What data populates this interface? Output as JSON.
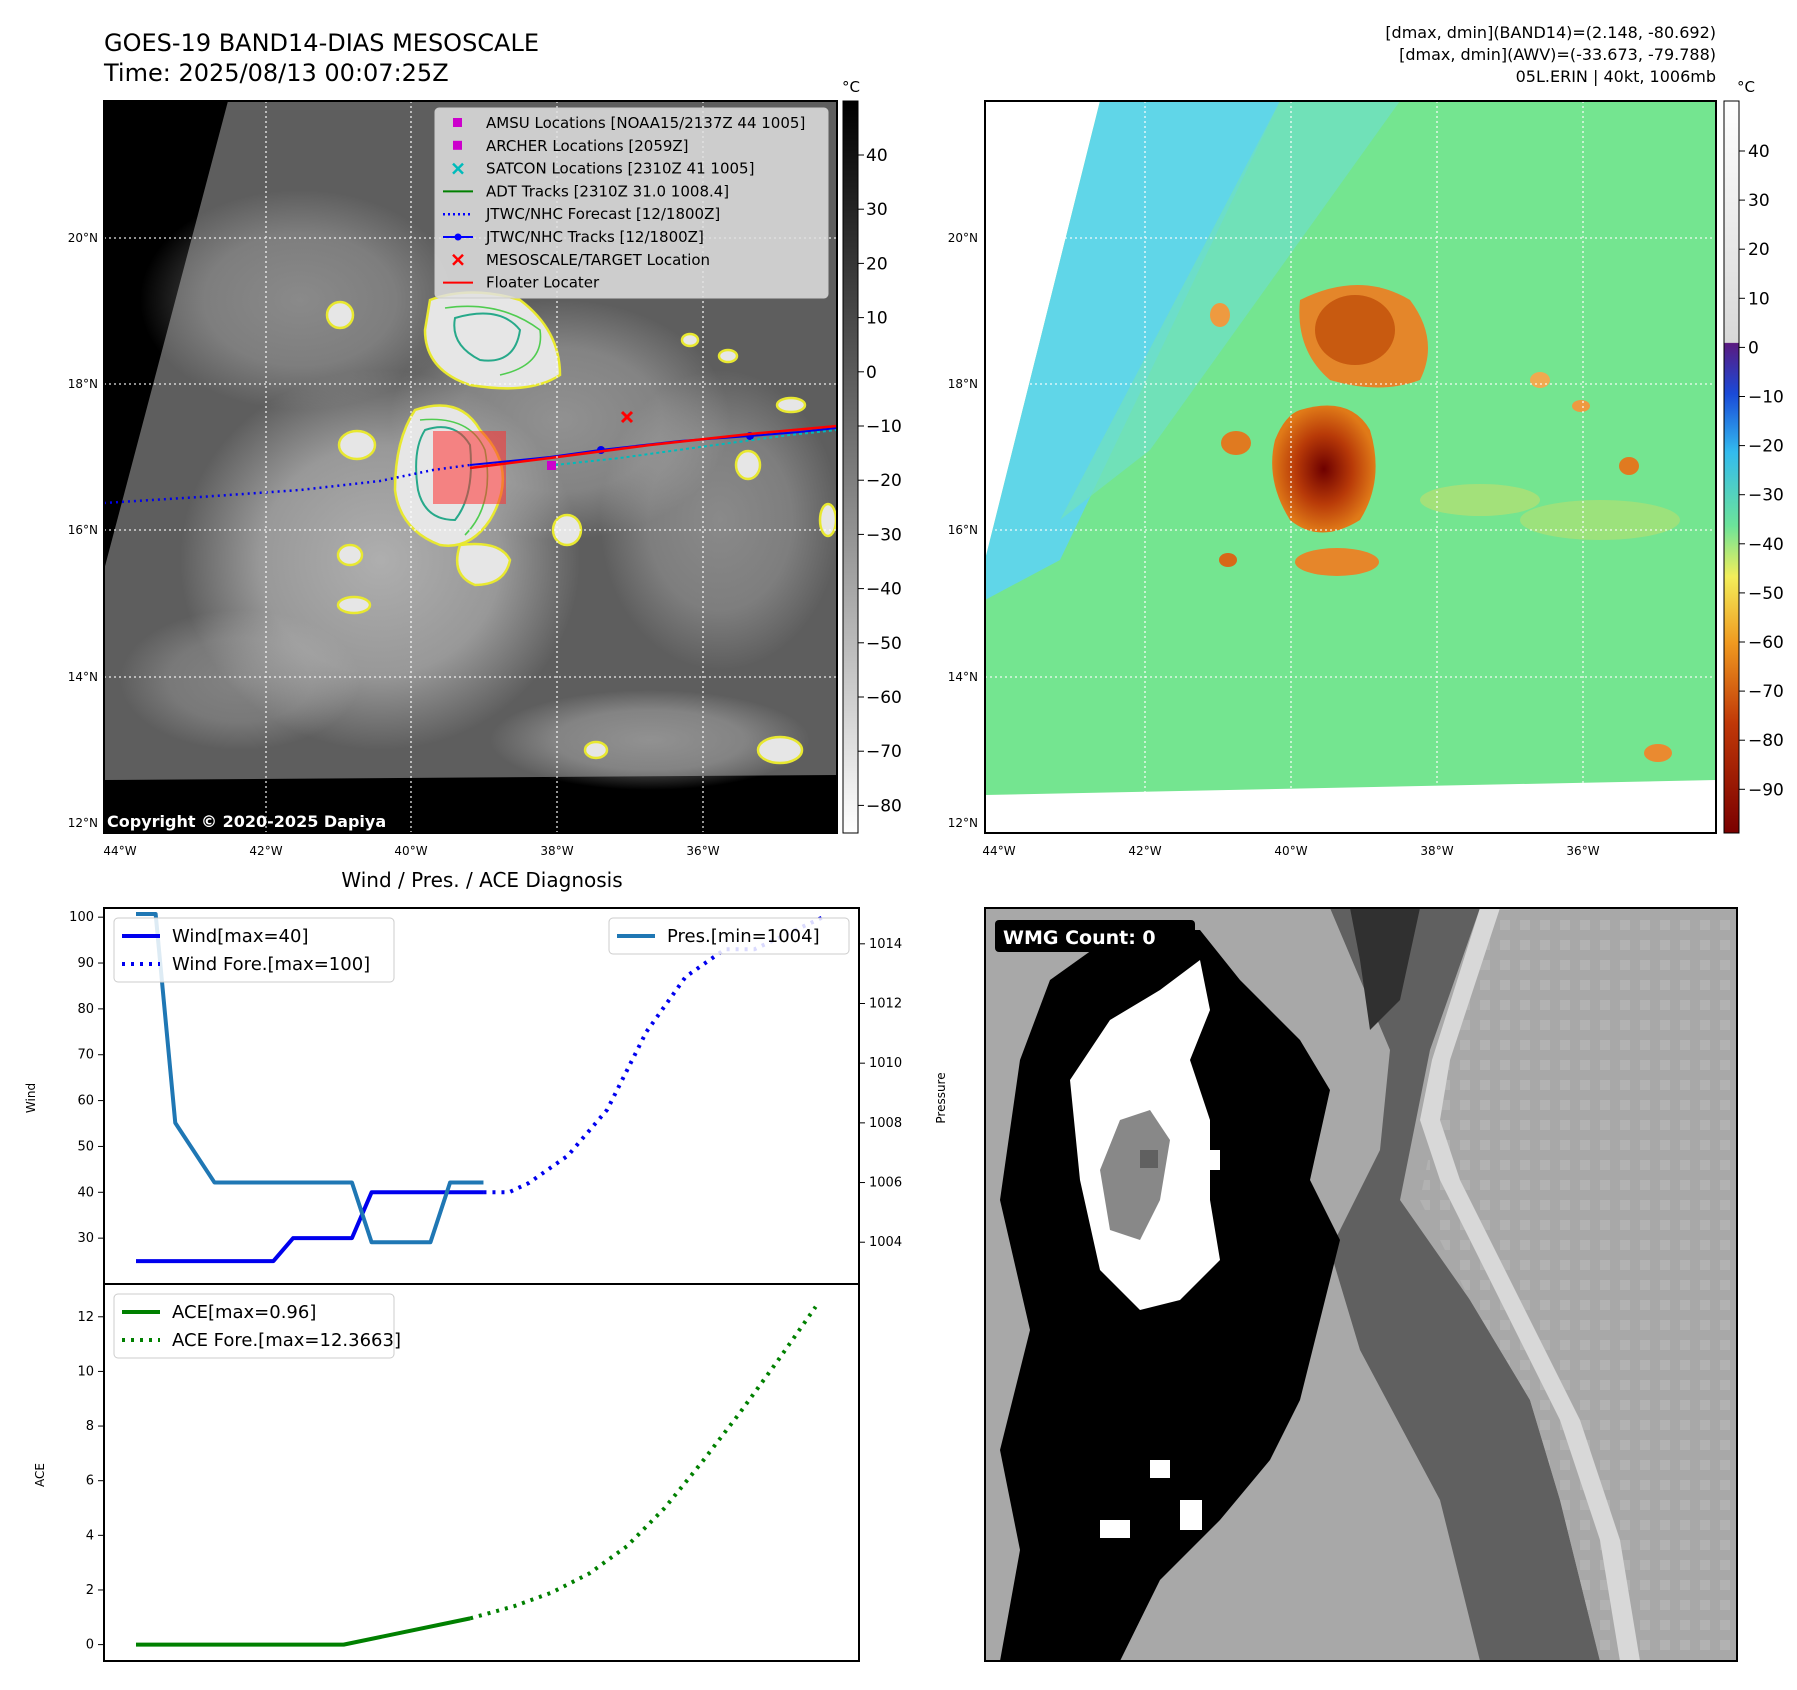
{
  "header": {
    "title_line1": "GOES-19 BAND14-DIAS MESOSCALE",
    "title_line2": "Time: 2025/08/13 00:07:25Z",
    "info_line1": "[dmax, dmin](BAND14)=(2.148, -80.692)",
    "info_line2": "[dmax, dmin](AWV)=(-33.673, -79.788)",
    "info_line3": "05L.ERIN | 40kt, 1006mb"
  },
  "map": {
    "lat_ticks": [
      "20°N",
      "18°N",
      "16°N",
      "14°N",
      "12°N"
    ],
    "lon_ticks": [
      "44°W",
      "42°W",
      "40°W",
      "38°W",
      "36°W"
    ],
    "copyright": "Copyright © 2020-2025 Dapiya",
    "legend": [
      {
        "label": "AMSU Locations [NOAA15/2137Z 44 1005]",
        "color": "#cc00cc",
        "marker": "square"
      },
      {
        "label": "ARCHER Locations [2059Z]",
        "color": "#cc00cc",
        "marker": "square"
      },
      {
        "label": "SATCON Locations [2310Z 41 1005]",
        "color": "#00bbbb",
        "marker": "x"
      },
      {
        "label": "ADT Tracks [2310Z 31.0 1008.4]",
        "color": "#008000",
        "marker": "line"
      },
      {
        "label": "JTWC/NHC Forecast [12/1800Z]",
        "color": "#0000ff",
        "marker": "dotted"
      },
      {
        "label": "JTWC/NHC Tracks [12/1800Z]",
        "color": "#0000ff",
        "marker": "line-dot"
      },
      {
        "label": "MESOSCALE/TARGET Location",
        "color": "#ff0000",
        "marker": "x"
      },
      {
        "label": "Floater Locater",
        "color": "#ff0000",
        "marker": "line"
      }
    ]
  },
  "colorbar_gray": {
    "unit": "°C",
    "ticks": [
      "40",
      "30",
      "20",
      "10",
      "0",
      "−10",
      "−20",
      "−30",
      "−40",
      "−50",
      "−60",
      "−70",
      "−80"
    ]
  },
  "colorbar_color": {
    "unit": "°C",
    "ticks": [
      "40",
      "30",
      "20",
      "10",
      "0",
      "−10",
      "−20",
      "−30",
      "−40",
      "−50",
      "−60",
      "−70",
      "−80",
      "−90"
    ]
  },
  "wmg": {
    "label": "WMG Count: 0"
  },
  "chart_data": [
    {
      "type": "line",
      "title": "Wind / Pres. / ACE Diagnosis",
      "ylabel": "Wind",
      "y2label": "Pressure",
      "ylim": [
        20,
        102
      ],
      "y2lim": [
        1002.6,
        1015.2
      ],
      "yticks": [
        "100",
        "90",
        "80",
        "70",
        "60",
        "50",
        "40",
        "30"
      ],
      "y2ticks": [
        "1014",
        "1012",
        "1010",
        "1008",
        "1006",
        "1004"
      ],
      "series": [
        {
          "name": "Wind[max=40]",
          "style": "solid",
          "color": "#0000ee",
          "axis": "left",
          "x": [
            0,
            7,
            8,
            11,
            12,
            12.6,
            17.7
          ],
          "values": [
            25,
            25,
            30,
            30,
            40,
            40,
            40
          ]
        },
        {
          "name": "Wind Fore.[max=100]",
          "style": "dotted",
          "color": "#0000ee",
          "axis": "left",
          "x": [
            17.7,
            19,
            20,
            22,
            24,
            26,
            28,
            30,
            31.5,
            33,
            35
          ],
          "values": [
            40,
            40,
            42,
            48,
            58,
            75,
            87,
            93,
            93,
            96,
            100
          ]
        },
        {
          "name": "Pres.[min=1004]",
          "style": "solid",
          "color": "#1f77b4",
          "axis": "right",
          "x": [
            0,
            1,
            2,
            4,
            11,
            12,
            15,
            16,
            17.7
          ],
          "values": [
            1015,
            1015,
            1008,
            1006,
            1006,
            1004,
            1004,
            1006,
            1006
          ]
        }
      ]
    },
    {
      "type": "line",
      "ylabel": "ACE",
      "ylim": [
        -0.6,
        13.2
      ],
      "yticks": [
        "12",
        "10",
        "8",
        "6",
        "4",
        "2",
        "0"
      ],
      "series": [
        {
          "name": "ACE[max=0.96]",
          "style": "solid",
          "color": "#008000",
          "x": [
            0,
            11,
            17.7
          ],
          "values": [
            0,
            0,
            0.96
          ]
        },
        {
          "name": "ACE Fore.[max=12.3663]",
          "style": "dotted",
          "color": "#008000",
          "x": [
            17.7,
            20,
            22,
            24,
            26,
            28,
            30,
            32,
            34,
            36
          ],
          "values": [
            0.96,
            1.4,
            1.9,
            2.6,
            3.6,
            5.0,
            6.7,
            8.5,
            10.4,
            12.3663
          ]
        }
      ]
    }
  ]
}
